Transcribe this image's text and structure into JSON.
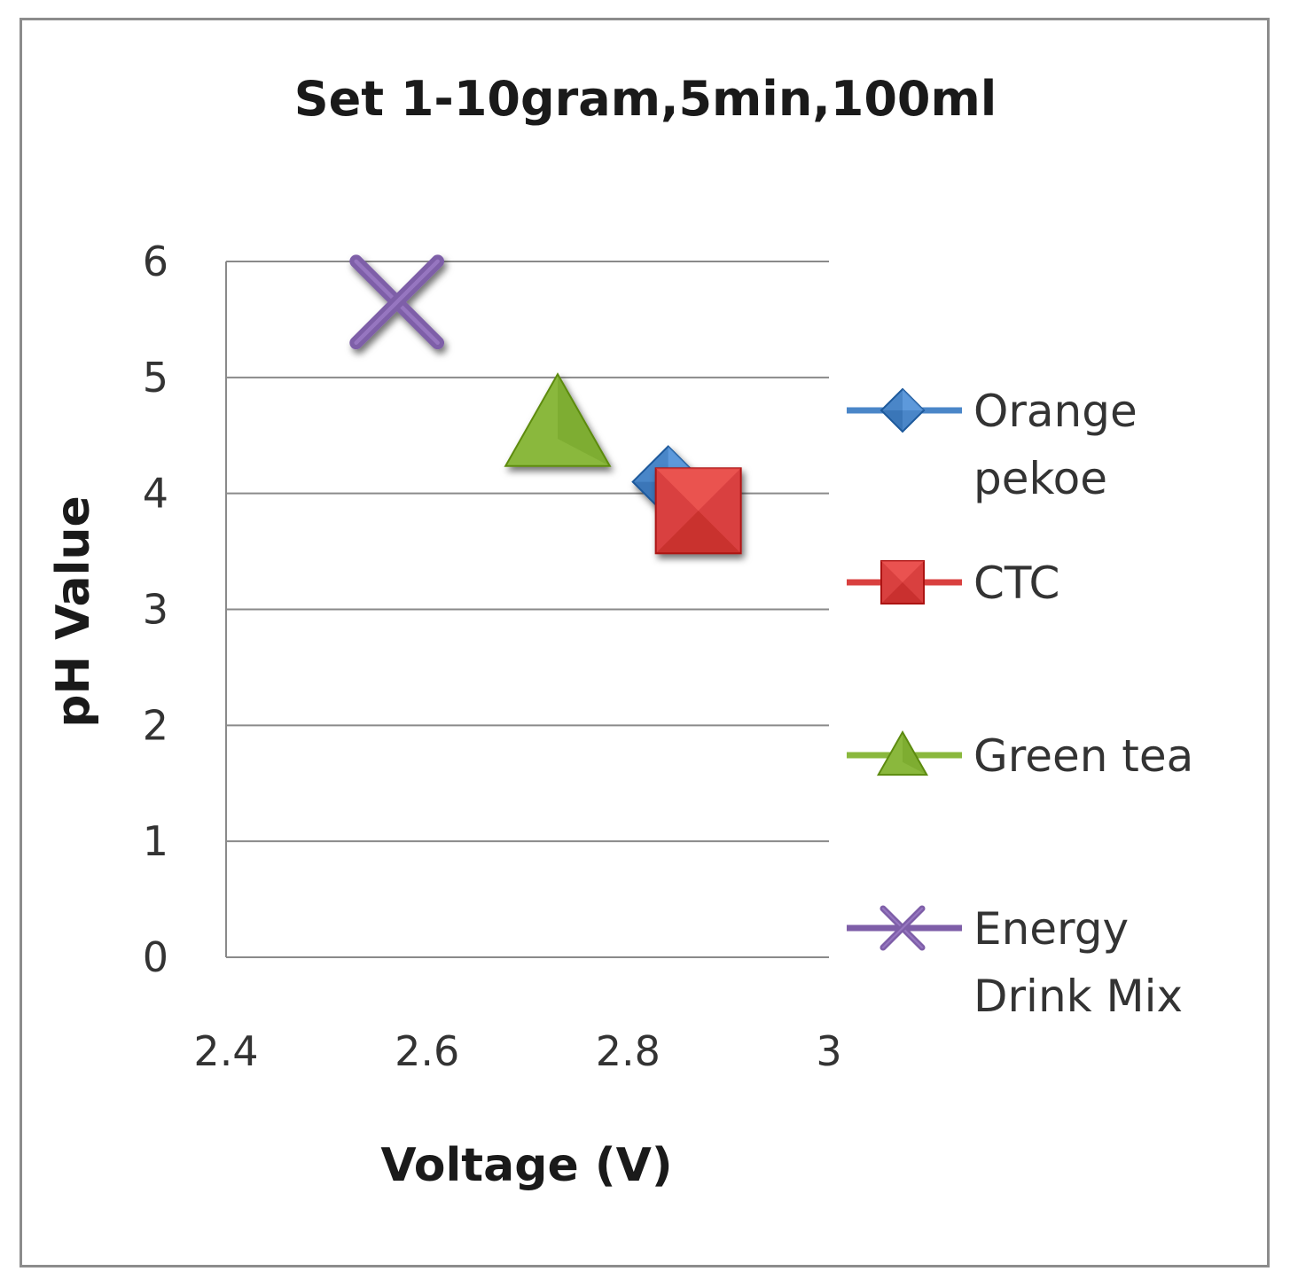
{
  "chart_data": {
    "type": "scatter",
    "title": "Set 1-10gram,5min,100ml",
    "xlabel": "Voltage (V)",
    "ylabel": "pH Value",
    "xlim": [
      2.4,
      3
    ],
    "ylim": [
      0,
      6
    ],
    "x_ticks": [
      "2.4",
      "2.6",
      "2.8",
      "3"
    ],
    "y_ticks": [
      "0",
      "1",
      "2",
      "3",
      "4",
      "5",
      "6"
    ],
    "grid": "horizontal",
    "legend_position": "right",
    "series": [
      {
        "name": "Orange pekoe",
        "label_lines": [
          "Orange",
          "pekoe"
        ],
        "marker": "diamond",
        "color": "#4a86c8",
        "x": [
          2.84
        ],
        "y": [
          4.1
        ]
      },
      {
        "name": "CTC",
        "label_lines": [
          "CTC"
        ],
        "marker": "square",
        "color": "#d9403f",
        "x": [
          2.87
        ],
        "y": [
          3.85
        ]
      },
      {
        "name": "Green tea",
        "label_lines": [
          "Green tea"
        ],
        "marker": "triangle",
        "color": "#8ab83d",
        "x": [
          2.73
        ],
        "y": [
          4.6
        ]
      },
      {
        "name": "Energy Drink Mix",
        "label_lines": [
          "Energy",
          "Drink Mix"
        ],
        "marker": "x",
        "color": "#7e5ea8",
        "x": [
          2.57
        ],
        "y": [
          5.65
        ]
      }
    ]
  }
}
